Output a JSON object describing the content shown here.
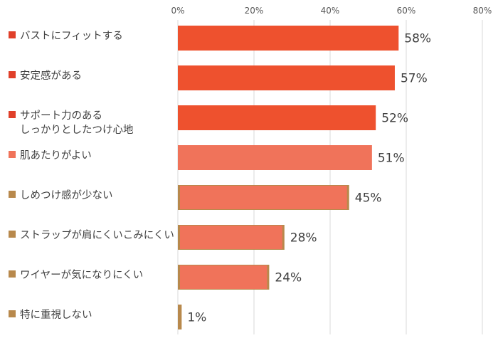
{
  "chart_data": {
    "type": "bar",
    "orientation": "horizontal",
    "xlim": [
      0,
      80
    ],
    "ticks": [
      "0%",
      "20%",
      "40%",
      "60%",
      "80%"
    ],
    "grid": "vertical",
    "categories": [
      [
        "バストにフィットする"
      ],
      [
        "安定感がある"
      ],
      [
        "サポート力のある",
        "しっかりとしたつけ心地"
      ],
      [
        "肌あたりがよい"
      ],
      [
        "しめつけ感が少ない"
      ],
      [
        "ストラップが肩にくいこみにくい"
      ],
      [
        "ワイヤーが気になりにくい"
      ],
      [
        "特に重視しない"
      ]
    ],
    "values": [
      58,
      57,
      52,
      51,
      45,
      28,
      24,
      1
    ],
    "value_labels": [
      "58%",
      "57%",
      "52%",
      "51%",
      "45%",
      "28%",
      "24%",
      "1%"
    ],
    "bar_colors": [
      "#ee512e",
      "#ee512e",
      "#ee512e",
      "#f0735a",
      "#f0735a",
      "#f0735a",
      "#f0735a",
      "#b8894c"
    ],
    "bar_outline_colors": [
      null,
      null,
      null,
      null,
      "#b8894c",
      "#b8894c",
      "#b8894c",
      null
    ],
    "marker_colors": [
      "#e0402a",
      "#e0402a",
      "#e0402a",
      "#f0735a",
      "#b8894c",
      "#b8894c",
      "#b8894c",
      "#b8894c"
    ]
  }
}
